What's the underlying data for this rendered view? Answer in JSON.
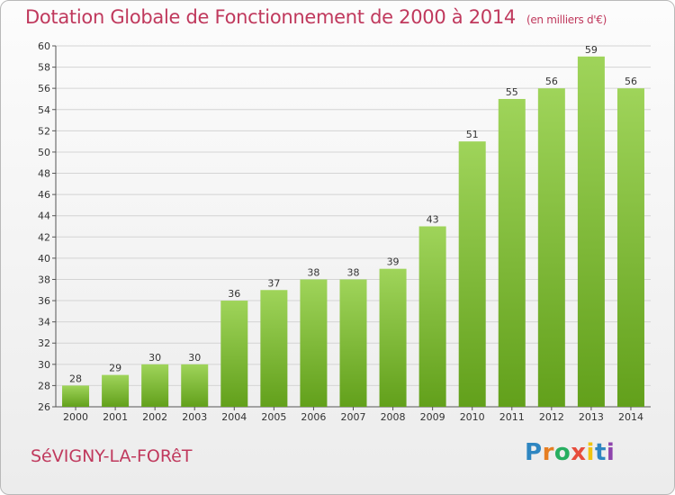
{
  "header": {
    "title": "Dotation Globale de Fonctionnement de 2000 à 2014",
    "unit": "(en milliers d'€)"
  },
  "footer": {
    "city": "SéVIGNY-LA-FORêT",
    "logo": "Proxiti",
    "logo_letters": [
      "P",
      "r",
      "o",
      "x",
      "i",
      "t",
      "i"
    ]
  },
  "colors": {
    "bar_light": "#9fd45a",
    "bar_dark": "#62a01b",
    "title": "#c0395d"
  },
  "chart_data": {
    "type": "bar",
    "title": "Dotation Globale de Fonctionnement de 2000 à 2014",
    "subtitle": "(en milliers d'€)",
    "categories": [
      "2000",
      "2001",
      "2002",
      "2003",
      "2004",
      "2005",
      "2006",
      "2007",
      "2008",
      "2009",
      "2010",
      "2011",
      "2012",
      "2013",
      "2014"
    ],
    "values": [
      28,
      29,
      30,
      30,
      36,
      37,
      38,
      38,
      39,
      43,
      51,
      55,
      56,
      59,
      56
    ],
    "ylim": [
      26,
      60
    ],
    "yticks": [
      26,
      28,
      30,
      32,
      34,
      36,
      38,
      40,
      42,
      44,
      46,
      48,
      50,
      52,
      54,
      56,
      58,
      60
    ],
    "grid": true,
    "data_labels": true
  }
}
